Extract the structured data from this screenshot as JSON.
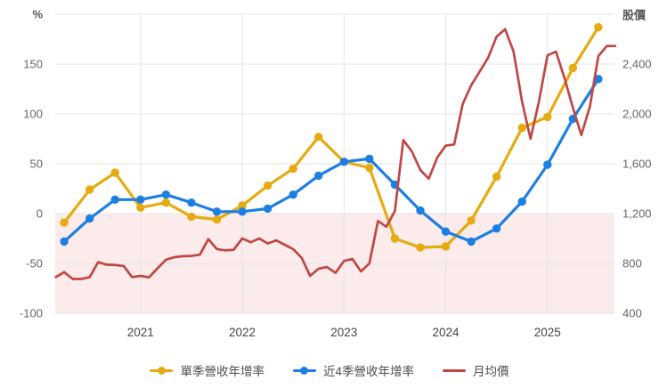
{
  "chart_data": {
    "type": "line",
    "title": "",
    "grid_color": "#e5e5e5",
    "negative_region": {
      "from": 0,
      "to": -100,
      "color": "#fbebeb"
    },
    "left_axis": {
      "unit": "%",
      "max": 200,
      "min": -100,
      "ticks": [
        200,
        150,
        100,
        50,
        0,
        -50,
        -100
      ],
      "tick_labels": [
        "%",
        "150",
        "100",
        "50",
        "0",
        "-50",
        "-100"
      ]
    },
    "right_axis": {
      "unit": "股價",
      "max": 2800,
      "min": 400,
      "ticks": [
        2800,
        2400,
        2000,
        1600,
        1200,
        800,
        400
      ],
      "tick_labels": [
        "股價",
        "2,400",
        "2,000",
        "1,600",
        "1,200",
        "800",
        "400"
      ]
    },
    "x_axis": {
      "tick_years": [
        "2021",
        "2022",
        "2023",
        "2024",
        "2025"
      ],
      "start": "2020-03",
      "end": "2025-09"
    },
    "series": [
      {
        "name": "單季營收年增率",
        "axis": "left",
        "color": "#e5ab10",
        "marker": true,
        "line_width": 3.2,
        "start": "2020-04",
        "interval_months": 3,
        "values": [
          -9,
          24,
          41,
          6,
          11,
          -3,
          -6,
          8,
          28,
          45,
          77,
          52,
          46,
          -25,
          -34,
          -33,
          -7,
          37,
          86,
          97,
          146,
          187
        ]
      },
      {
        "name": "近4季營收年增率",
        "axis": "left",
        "color": "#1d7fe3",
        "marker": true,
        "line_width": 3.2,
        "start": "2020-04",
        "interval_months": 3,
        "values": [
          -28,
          -5,
          14,
          14,
          19,
          11,
          2,
          2,
          5,
          19,
          38,
          52,
          55,
          29,
          3,
          -18,
          -28,
          -15,
          12,
          49,
          95,
          135
        ]
      },
      {
        "name": "月均價",
        "axis": "right",
        "color": "#bf4845",
        "marker": false,
        "line_width": 2.7,
        "start": "2020-03",
        "interval_months": 1,
        "values": [
          690,
          730,
          675,
          675,
          690,
          810,
          790,
          787,
          780,
          690,
          700,
          688,
          760,
          830,
          850,
          858,
          860,
          870,
          995,
          915,
          905,
          910,
          1000,
          970,
          1000,
          960,
          985,
          950,
          915,
          845,
          700,
          757,
          771,
          724,
          820,
          835,
          736,
          800,
          1140,
          1095,
          1220,
          1790,
          1700,
          1550,
          1480,
          1650,
          1745,
          1755,
          2080,
          2230,
          2340,
          2450,
          2620,
          2680,
          2500,
          2100,
          1800,
          2100,
          2470,
          2500,
          2290,
          2050,
          1830,
          2060,
          2464,
          2545,
          2545
        ]
      }
    ]
  }
}
